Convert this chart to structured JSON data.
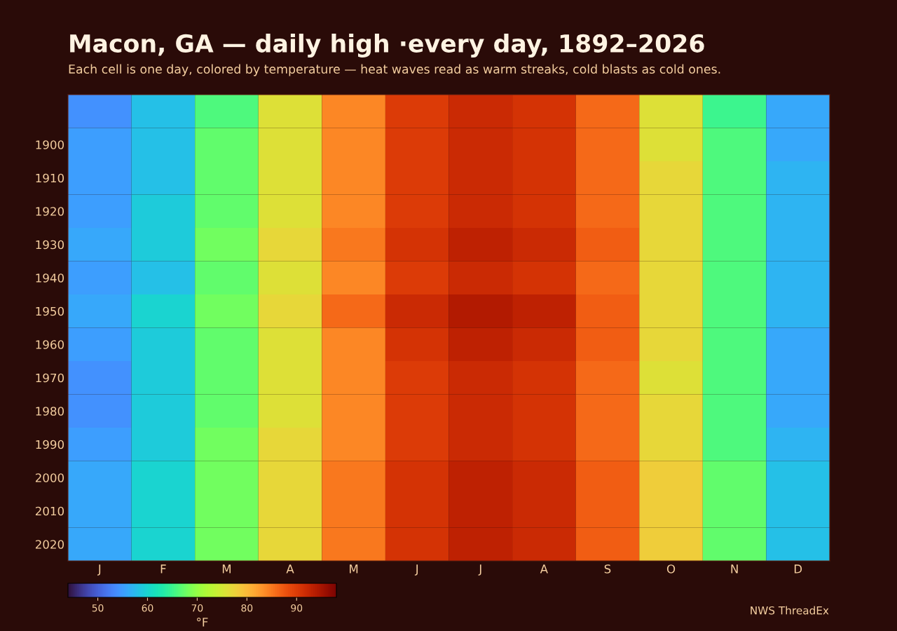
{
  "chart_data": {
    "type": "heatmap",
    "title": "Macon, GA — daily high ·every day, 1892–2026",
    "subtitle": "Each cell is one day, colored by temperature — heat waves read as warm streaks, cold blasts as cold ones.",
    "categories": [
      "J",
      "F",
      "M",
      "A",
      "M",
      "J",
      "J",
      "A",
      "S",
      "O",
      "N",
      "D"
    ],
    "y_categories": [
      null,
      "1900",
      "1910",
      "1920",
      "1930",
      "1940",
      "1950",
      "1960",
      "1970",
      "1980",
      "1990",
      "2000",
      "2010",
      "2020"
    ],
    "cells": [
      [
        54,
        58,
        66,
        76,
        84,
        90,
        92,
        91,
        86,
        76,
        65,
        56
      ],
      [
        55,
        58,
        67,
        76,
        84,
        90,
        92,
        91,
        86,
        76,
        66,
        56
      ],
      [
        55,
        58,
        67,
        76,
        84,
        90,
        92,
        91,
        86,
        77,
        66,
        57
      ],
      [
        55,
        59,
        67,
        76,
        84,
        90,
        92,
        91,
        86,
        77,
        66,
        57
      ],
      [
        56,
        59,
        68,
        77,
        85,
        91,
        93,
        92,
        87,
        77,
        66,
        57
      ],
      [
        55,
        58,
        67,
        76,
        84,
        90,
        92,
        91,
        86,
        77,
        66,
        57
      ],
      [
        56,
        60,
        68,
        77,
        86,
        92,
        94,
        93,
        87,
        77,
        66,
        57
      ],
      [
        55,
        59,
        67,
        76,
        84,
        91,
        93,
        92,
        87,
        77,
        66,
        56
      ],
      [
        54,
        59,
        67,
        76,
        84,
        90,
        92,
        91,
        86,
        76,
        66,
        56
      ],
      [
        54,
        59,
        67,
        76,
        84,
        90,
        92,
        91,
        86,
        77,
        66,
        56
      ],
      [
        55,
        59,
        68,
        77,
        84,
        90,
        92,
        91,
        86,
        77,
        66,
        57
      ],
      [
        56,
        60,
        68,
        77,
        85,
        91,
        93,
        92,
        87,
        78,
        67,
        58
      ],
      [
        56,
        60,
        68,
        77,
        85,
        91,
        93,
        92,
        87,
        78,
        67,
        58
      ],
      [
        56,
        60,
        68,
        77,
        85,
        91,
        93,
        92,
        87,
        78,
        67,
        58
      ]
    ],
    "clim": [
      44,
      98
    ],
    "cticks": [
      50,
      60,
      70,
      80,
      90
    ],
    "clabel": "°F",
    "annotations": [
      "NWS ThreadEx"
    ],
    "grid": false,
    "legend": false
  }
}
